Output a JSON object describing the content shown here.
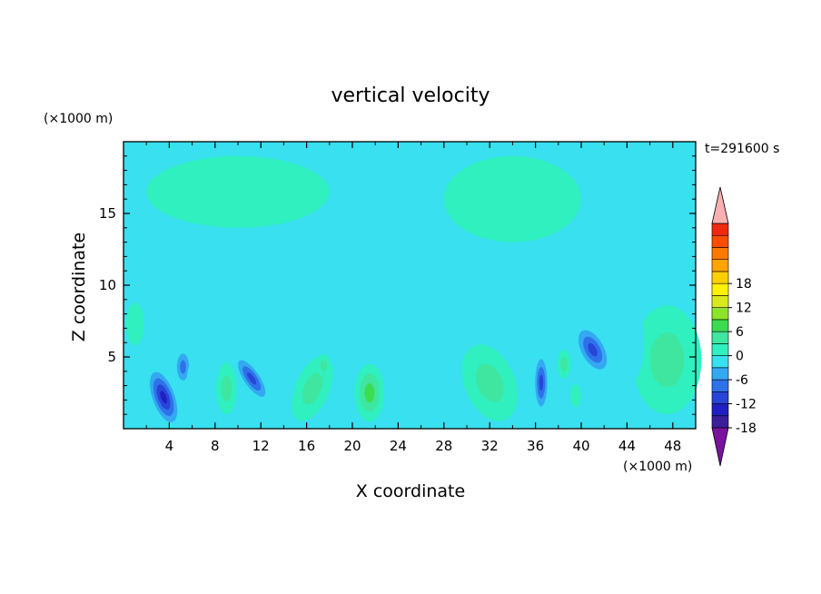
{
  "chart_data": {
    "type": "heatmap",
    "title": "vertical velocity",
    "xlabel": "X coordinate",
    "ylabel": "Z coordinate",
    "x_unit": "(×1000 m)",
    "z_unit": "(×1000 m)",
    "time_label": "t=291600 s",
    "xlim": [
      0,
      50
    ],
    "zlim": [
      0,
      20
    ],
    "x_ticks": [
      "4",
      "8",
      "12",
      "16",
      "20",
      "24",
      "28",
      "32",
      "36",
      "40",
      "44",
      "48"
    ],
    "z_ticks": [
      "5",
      "10",
      "15"
    ],
    "background_level": 0,
    "colorbar": {
      "min": -21,
      "max": 21,
      "step": 3,
      "tick_labels": [
        "18",
        "12",
        "6",
        "0",
        "-6",
        "-12",
        "-18"
      ],
      "colors": [
        "#7a12a0",
        "#3c1e9c",
        "#2020c0",
        "#2845d8",
        "#2e72ea",
        "#35a8f2",
        "#38e0f0",
        "#30f0c0",
        "#3ee6a0",
        "#3cdc50",
        "#8ce42a",
        "#d8ea1c",
        "#fff200",
        "#ffd000",
        "#ffa400",
        "#ff7800",
        "#ff4c00",
        "#f02a10",
        "#f8b0b0"
      ]
    },
    "features": [
      {
        "x": 3.5,
        "z": 2.2,
        "w": -13,
        "rx": 1.2,
        "rz": 2.3,
        "tilt": -0.35
      },
      {
        "x": 5.2,
        "z": 4.3,
        "w": -7,
        "rx": 0.8,
        "rz": 1.4,
        "tilt": 0.0
      },
      {
        "x": 9.0,
        "z": 2.8,
        "w": 5,
        "rx": 0.9,
        "rz": 1.8,
        "tilt": 0.0
      },
      {
        "x": 11.2,
        "z": 3.5,
        "w": -10,
        "rx": 0.9,
        "rz": 2.0,
        "tilt": -0.6
      },
      {
        "x": 16.5,
        "z": 2.8,
        "w": 6,
        "rx": 1.5,
        "rz": 2.4,
        "tilt": 0.4
      },
      {
        "x": 17.5,
        "z": 4.4,
        "w": 4,
        "rx": 0.6,
        "rz": 0.8,
        "tilt": 0.0
      },
      {
        "x": 21.5,
        "z": 2.5,
        "w": 7,
        "rx": 1.3,
        "rz": 2.0,
        "tilt": 0.0
      },
      {
        "x": 32.0,
        "z": 3.2,
        "w": 6,
        "rx": 2.2,
        "rz": 2.8,
        "tilt": -0.4
      },
      {
        "x": 36.5,
        "z": 3.2,
        "w": -12,
        "rx": 0.7,
        "rz": 2.2,
        "tilt": 0.0
      },
      {
        "x": 38.5,
        "z": 4.5,
        "w": 4,
        "rx": 0.6,
        "rz": 1.0,
        "tilt": 0.0
      },
      {
        "x": 39.5,
        "z": 2.3,
        "w": 3,
        "rx": 0.5,
        "rz": 0.8,
        "tilt": 0.0
      },
      {
        "x": 41.0,
        "z": 5.5,
        "w": -10,
        "rx": 1.3,
        "rz": 2.0,
        "tilt": -0.5
      },
      {
        "x": 47.5,
        "z": 4.8,
        "w": 6,
        "rx": 3.0,
        "rz": 3.8,
        "tilt": 0.0
      },
      {
        "x": 1.0,
        "z": 7.3,
        "w": 3,
        "rx": 0.8,
        "rz": 1.5,
        "tilt": 0.0
      },
      {
        "x": 6.5,
        "z": 3.0,
        "w": -3,
        "rx": 1.0,
        "rz": 2.2,
        "tilt": 0.0
      },
      {
        "x": 14.0,
        "z": 3.5,
        "w": -3,
        "rx": 1.0,
        "rz": 2.0,
        "tilt": 0.0
      },
      {
        "x": 26.0,
        "z": 3.0,
        "w": -2,
        "rx": 3.0,
        "rz": 2.0,
        "tilt": 0.0
      },
      {
        "x": 44.0,
        "z": 6.0,
        "w": -3,
        "rx": 1.5,
        "rz": 3.0,
        "tilt": 0.0
      },
      {
        "x": 34.0,
        "z": 16.0,
        "w": 2,
        "rx": 6.0,
        "rz": 3.0,
        "tilt": 0.0
      },
      {
        "x": 10.0,
        "z": 16.5,
        "w": 2,
        "rx": 8.0,
        "rz": 2.5,
        "tilt": 0.0
      }
    ]
  }
}
